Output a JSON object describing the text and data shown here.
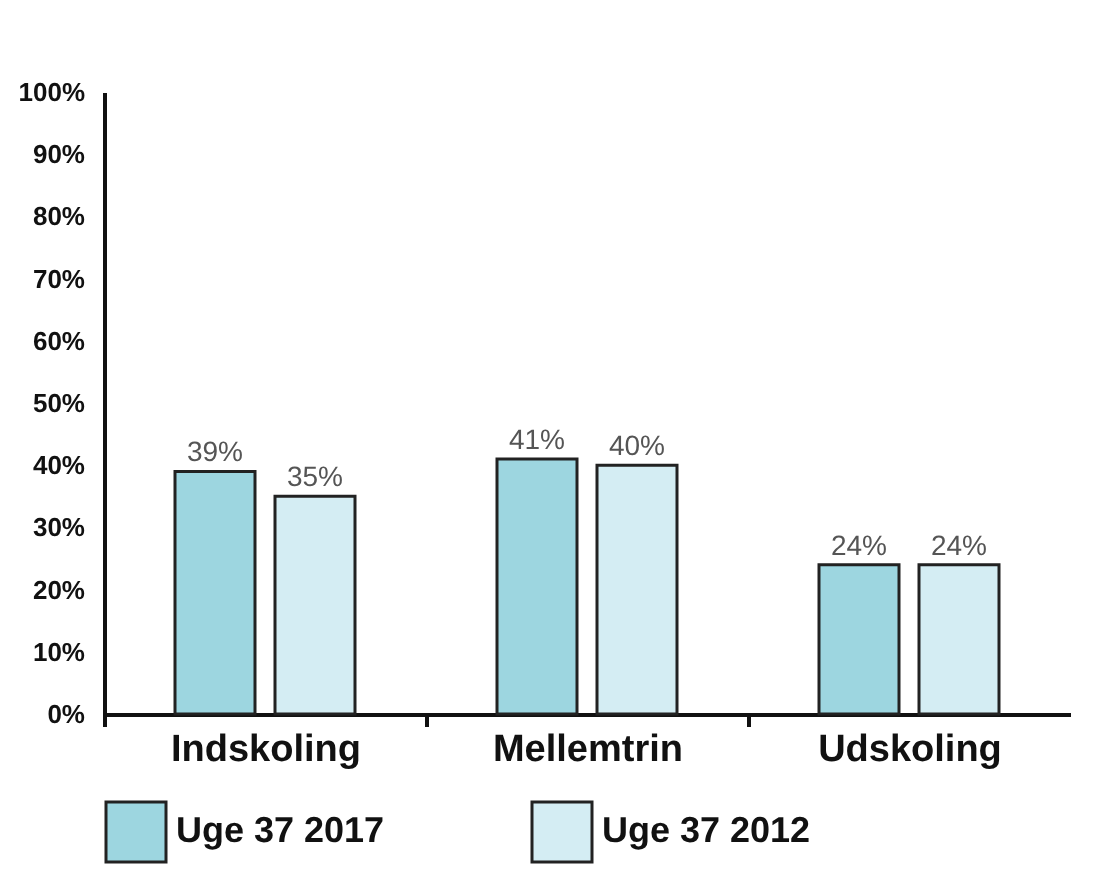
{
  "chart_data": {
    "type": "bar",
    "categories": [
      "Indskoling",
      "Mellemtrin",
      "Udskoling"
    ],
    "series": [
      {
        "name": "Uge 37 2017",
        "color": "#9dd6e0",
        "values": [
          39,
          41,
          24
        ],
        "value_labels": [
          "39%",
          "41%",
          "24%"
        ]
      },
      {
        "name": "Uge 37 2012",
        "color": "#d4edf3",
        "values": [
          35,
          40,
          24
        ],
        "value_labels": [
          "35%",
          "40%",
          "24%"
        ]
      }
    ],
    "ylim": [
      0,
      100
    ],
    "yticks": [
      {
        "value": 0,
        "label": "0%"
      },
      {
        "value": 10,
        "label": "10%"
      },
      {
        "value": 20,
        "label": "20%"
      },
      {
        "value": 30,
        "label": "30%"
      },
      {
        "value": 40,
        "label": "40%"
      },
      {
        "value": 50,
        "label": "50%"
      },
      {
        "value": 60,
        "label": "60%"
      },
      {
        "value": 70,
        "label": "70%"
      },
      {
        "value": 80,
        "label": "80%"
      },
      {
        "value": 90,
        "label": "90%"
      },
      {
        "value": 100,
        "label": "100%"
      }
    ],
    "grid": false,
    "legend": "bottom"
  }
}
